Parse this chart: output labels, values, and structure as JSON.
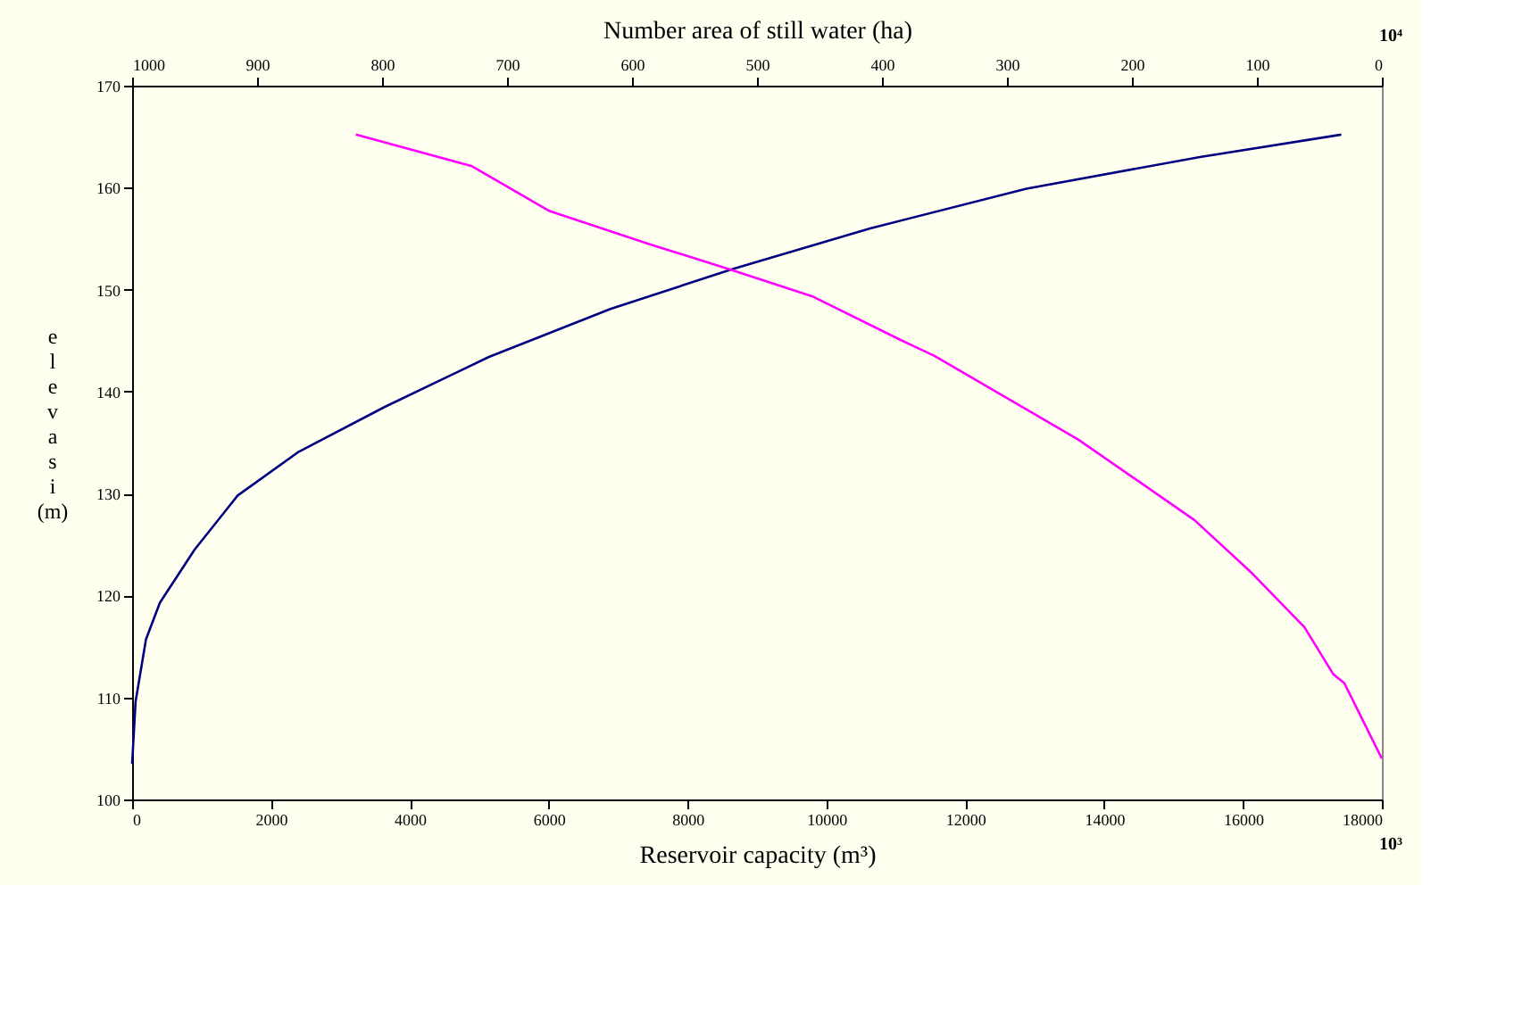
{
  "chart_data": {
    "type": "line",
    "xlabel": "Reservoir capacity (m³)",
    "x2label": "Number area of still water (ha)",
    "ylabel": "elevasi (m)",
    "annotations": [
      "10³",
      "10⁴"
    ],
    "xlim": [
      0,
      18000
    ],
    "xticks": [
      0,
      2000,
      4000,
      6000,
      8000,
      10000,
      12000,
      14000,
      16000,
      18000
    ],
    "x2lim": [
      1000,
      0
    ],
    "x2ticks": [
      1000,
      900,
      800,
      700,
      600,
      500,
      400,
      300,
      200,
      100,
      0
    ],
    "ylim": [
      100,
      170
    ],
    "yticks": [
      100,
      110,
      120,
      130,
      140,
      150,
      160,
      170
    ],
    "grid": false,
    "marker": "none",
    "line_style": "solid",
    "series": [
      {
        "color": "#000080",
        "x": [
          0,
          50,
          200,
          400,
          900,
          1520,
          2400,
          3640,
          5140,
          6890,
          8640,
          10630,
          12880,
          15380,
          17415
        ],
        "values": [
          103.5,
          109.6,
          115.7,
          119.3,
          124.5,
          129.8,
          134.1,
          138.5,
          143.4,
          148.1,
          152,
          156,
          159.9,
          163,
          165.2
        ]
      },
      {
        "color": "#ff00ff",
        "axis": "x2",
        "x": [
          821,
          728,
          666,
          587,
          520,
          455,
          384,
          358,
          243,
          150,
          104,
          62,
          39,
          30,
          0
        ],
        "values": [
          165.2,
          162.1,
          157.7,
          154.5,
          151.9,
          149.3,
          145,
          143.5,
          135.3,
          127.4,
          122.2,
          116.9,
          112.3,
          111.4,
          104
        ]
      }
    ]
  }
}
